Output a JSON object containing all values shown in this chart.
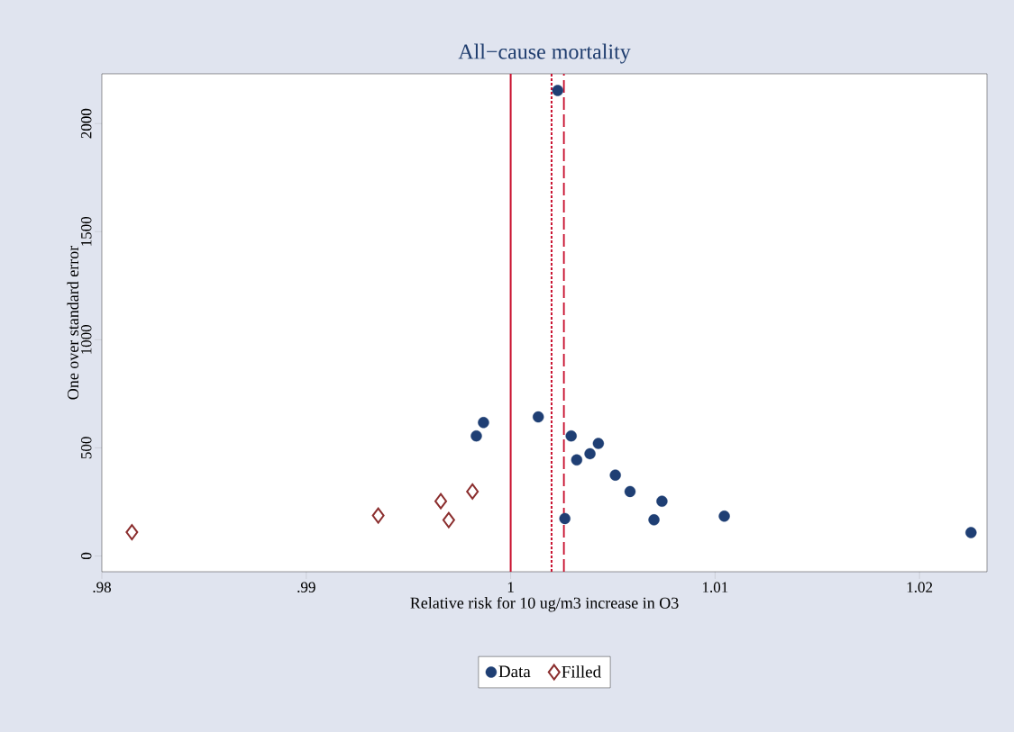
{
  "chart_data": {
    "type": "scatter",
    "title": "All−cause mortality",
    "xlabel": "Relative risk for 10 ug/m3 increase in O3",
    "ylabel": "One over standard error",
    "series": [
      {
        "name": "Data",
        "color": "#1f3f74",
        "marker": "circle",
        "x": [
          1.0023,
          0.99867,
          0.99832,
          1.00135,
          1.00296,
          1.00323,
          1.00388,
          1.00429,
          1.00512,
          1.00584,
          1.0074,
          1.00265,
          1.00701,
          1.01045,
          1.02252
        ],
        "values": [
          2153,
          617,
          555,
          643,
          555,
          444,
          473,
          520,
          374,
          298,
          253,
          173,
          167,
          184,
          108
        ]
      },
      {
        "name": "Filled",
        "color": "#8b2e2e",
        "marker": "diamond",
        "x": [
          0.98147,
          0.99352,
          0.99658,
          0.99697,
          0.99813
        ],
        "values": [
          110,
          187,
          253,
          166,
          298
        ]
      }
    ],
    "ref_lines": [
      {
        "axis": "x",
        "value": 1,
        "color": "#c8102e",
        "line_style": "solid"
      },
      {
        "axis": "x",
        "value": 1.002,
        "color": "#c8102e",
        "line_style": "dotted"
      },
      {
        "axis": "x",
        "value": 1.0026,
        "color": "#c8102e",
        "line_style": "dashed"
      }
    ],
    "xlim": [
      0.98,
      1.0233
    ],
    "ylim": [
      -73,
      2230
    ],
    "xticks": [
      {
        "value": 0.98,
        "label": ".98"
      },
      {
        "value": 0.99,
        "label": ".99"
      },
      1,
      1.01,
      1.02
    ],
    "yticks": [
      0,
      500,
      1000,
      1500,
      2000
    ],
    "grid": false,
    "legend": "bottom"
  }
}
